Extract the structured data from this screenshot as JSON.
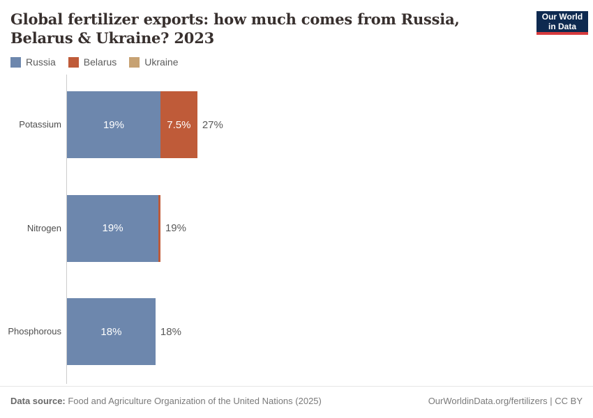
{
  "header": {
    "logo": {
      "line1": "Our World",
      "line2": "in Data",
      "bg_color": "#0e2a50",
      "accent_color": "#d73b3e"
    }
  },
  "chart_data": {
    "type": "bar",
    "orientation": "horizontal",
    "stacked": true,
    "title": "Global fertilizer exports: how much comes from Russia, Belarus & Ukraine? 2023",
    "categories": [
      "Potassium",
      "Nitrogen",
      "Phosphorous"
    ],
    "series": [
      {
        "name": "Russia",
        "color": "#6d87ad",
        "values": [
          19,
          18.6,
          18
        ],
        "labels": [
          "19%",
          "19%",
          "18%"
        ]
      },
      {
        "name": "Belarus",
        "color": "#bf5b39",
        "values": [
          7.5,
          0.4,
          0
        ],
        "labels": [
          "7.5%",
          "",
          ""
        ]
      },
      {
        "name": "Ukraine",
        "color": "#c7a273",
        "values": [
          0,
          0,
          0
        ],
        "labels": [
          "",
          "",
          ""
        ]
      }
    ],
    "total_labels": [
      "27%",
      "19%",
      "18%"
    ],
    "xlim": [
      0,
      100
    ],
    "grid": false,
    "legend_position": "top",
    "unit": "%"
  },
  "footer": {
    "source_label": "Data source:",
    "source_text": " Food and Agriculture Organization of the United Nations (2025)",
    "attribution": "OurWorldinData.org/fertilizers | CC BY"
  }
}
